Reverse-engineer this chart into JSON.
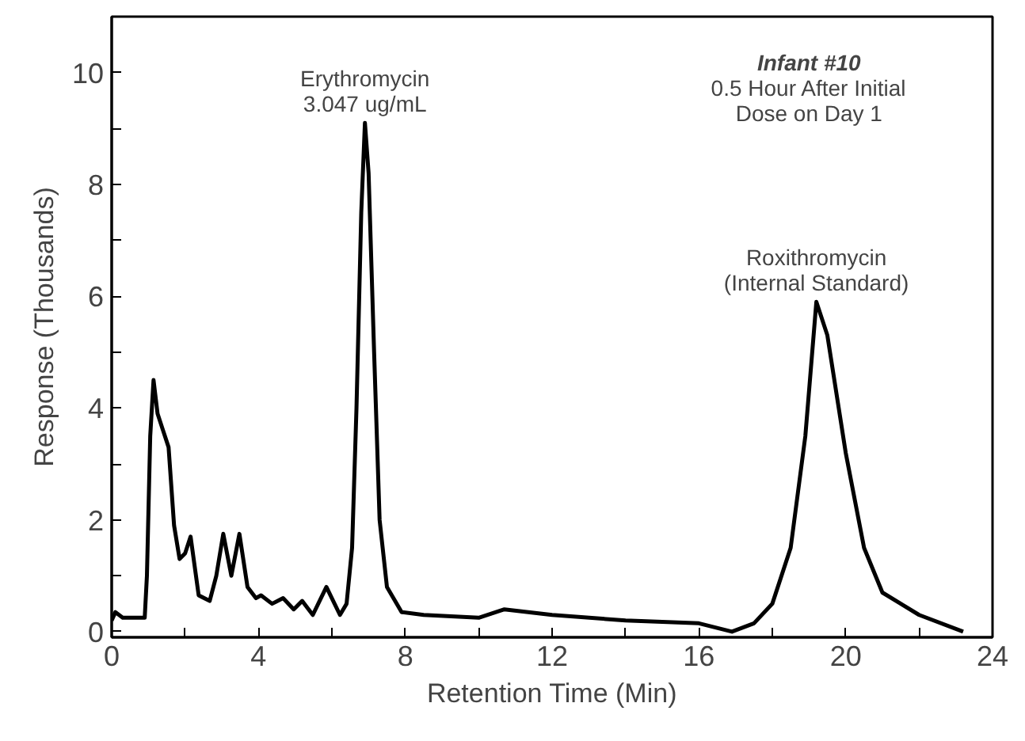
{
  "chart_data": {
    "type": "line",
    "title": "Infant #10",
    "subtitle": "0.5 Hour After Initial\nDose on Day 1",
    "xlabel": "Retention Time (Min)",
    "ylabel": "Response (Thousands)",
    "annotations": [
      {
        "text": "Erythromycin\n3.047 ug/mL",
        "x": 6.9,
        "y": 9.1
      },
      {
        "text": "Roxithromycin\n(Internal Standard)",
        "x": 19.2,
        "y": 5.9
      }
    ],
    "x": [
      0,
      0.1,
      0.3,
      0.9,
      0.96,
      1.05,
      1.14,
      1.25,
      1.4,
      1.55,
      1.7,
      1.85,
      2.0,
      2.15,
      2.37,
      2.67,
      2.85,
      3.04,
      3.26,
      3.48,
      3.7,
      3.93,
      4.07,
      4.37,
      4.67,
      4.96,
      5.19,
      5.48,
      5.85,
      6.22,
      6.4,
      6.55,
      6.67,
      6.8,
      6.9,
      7.0,
      7.15,
      7.3,
      7.5,
      7.9,
      8.5,
      10,
      10.7,
      12,
      14,
      16,
      16.9,
      17.5,
      18,
      18.5,
      18.9,
      19.2,
      19.5,
      20,
      20.5,
      21,
      22,
      23.2
    ],
    "values": [
      0.2,
      0.35,
      0.25,
      0.25,
      1.0,
      3.5,
      4.5,
      3.9,
      3.6,
      3.3,
      1.9,
      1.3,
      1.4,
      1.7,
      0.65,
      0.55,
      1.0,
      1.75,
      1.0,
      1.75,
      0.8,
      0.6,
      0.65,
      0.5,
      0.6,
      0.4,
      0.55,
      0.3,
      0.8,
      0.3,
      0.5,
      1.5,
      4.0,
      7.5,
      9.1,
      8.2,
      5.0,
      2.0,
      0.8,
      0.35,
      0.3,
      0.25,
      0.4,
      0.3,
      0.2,
      0.15,
      0.0,
      0.15,
      0.5,
      1.5,
      3.5,
      5.9,
      5.3,
      3.2,
      1.5,
      0.7,
      0.3,
      0.0
    ],
    "color": "#000000",
    "xlim": [
      0,
      24
    ],
    "ylim": [
      -0.1,
      11
    ],
    "xticks": [
      0,
      {
        "value": 2,
        "label": null
      },
      4,
      {
        "value": 6,
        "label": null
      },
      8,
      {
        "value": 10,
        "label": null
      },
      12,
      {
        "value": 14,
        "label": null
      },
      16,
      {
        "value": 18,
        "label": null
      },
      20,
      {
        "value": 22,
        "label": null
      },
      24
    ],
    "yticks": [
      0,
      {
        "value": 1,
        "label": null
      },
      2,
      {
        "value": 3,
        "label": null
      },
      4,
      {
        "value": 5,
        "label": null
      },
      6,
      {
        "value": 7,
        "label": null
      },
      8,
      {
        "value": 9,
        "label": null
      },
      10
    ],
    "grid": false
  }
}
